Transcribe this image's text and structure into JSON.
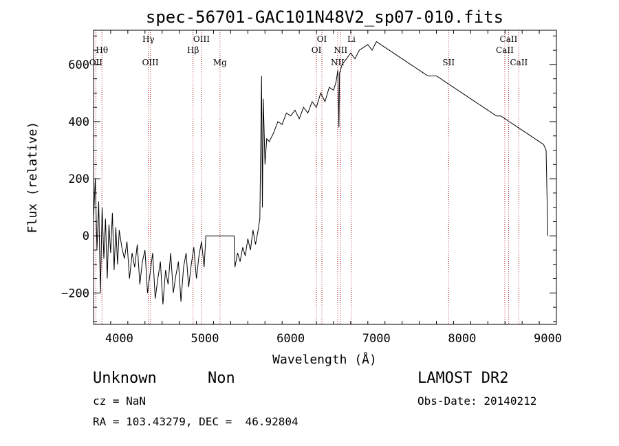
{
  "chart_data": {
    "type": "line",
    "title": "spec-56701-GAC101N48V2_sp07-010.fits",
    "xlabel": "Wavelength (Å)",
    "ylabel": "Flux (relative)",
    "xlim": [
      3700,
      9100
    ],
    "ylim": [
      -310,
      720
    ],
    "x_ticks": [
      4000,
      5000,
      6000,
      7000,
      8000,
      9000
    ],
    "y_ticks": [
      -200,
      0,
      200,
      400,
      600
    ],
    "grid": false,
    "line_color": "#000000",
    "marker_color": "#b22222",
    "series": [
      {
        "x": [
          3700,
          3720,
          3740,
          3760,
          3780,
          3800,
          3820,
          3840,
          3860,
          3880,
          3900,
          3920,
          3940,
          3960,
          3980,
          4000,
          4030,
          4060,
          4090,
          4120,
          4150,
          4180,
          4210,
          4240,
          4270,
          4300,
          4330,
          4360,
          4390,
          4420,
          4450,
          4480,
          4510,
          4540,
          4570,
          4600,
          4630,
          4660,
          4690,
          4720,
          4750,
          4780,
          4810,
          4840,
          4870,
          4900,
          4930,
          4960,
          4990,
          5010,
          5340,
          5350,
          5380,
          5410,
          5440,
          5470,
          5500,
          5530,
          5560,
          5590,
          5620,
          5640,
          5650,
          5660,
          5670,
          5680,
          5700,
          5720,
          5750,
          5800,
          5850,
          5900,
          5950,
          6000,
          6050,
          6100,
          6150,
          6200,
          6250,
          6300,
          6350,
          6400,
          6450,
          6500,
          6530,
          6550,
          6563,
          6570,
          6600,
          6650,
          6700,
          6750,
          6800,
          6850,
          6900,
          6950,
          7000,
          7050,
          7100,
          7150,
          7200,
          7250,
          7300,
          7350,
          7400,
          7450,
          7500,
          7550,
          7600,
          7650,
          7700,
          7750,
          7800,
          7850,
          7900,
          7950,
          8000,
          8050,
          8100,
          8150,
          8200,
          8250,
          8300,
          8350,
          8400,
          8450,
          8500,
          8550,
          8600,
          8650,
          8700,
          8750,
          8800,
          8850,
          8900,
          8950,
          8980,
          9000
        ],
        "y": [
          60,
          200,
          -50,
          120,
          -200,
          100,
          -80,
          60,
          -150,
          40,
          -60,
          80,
          -120,
          30,
          -100,
          20,
          -40,
          -80,
          -20,
          -150,
          -60,
          -110,
          -30,
          -170,
          -90,
          -50,
          -200,
          -130,
          -60,
          -220,
          -150,
          -90,
          -240,
          -120,
          -170,
          -60,
          -200,
          -140,
          -90,
          -230,
          -110,
          -60,
          -180,
          -100,
          -40,
          -150,
          -70,
          -20,
          -110,
          0,
          0,
          -110,
          -60,
          -90,
          -40,
          -70,
          -10,
          -50,
          20,
          -30,
          20,
          60,
          300,
          560,
          100,
          480,
          250,
          340,
          330,
          360,
          400,
          390,
          430,
          420,
          440,
          410,
          450,
          430,
          470,
          450,
          500,
          470,
          520,
          510,
          540,
          580,
          380,
          570,
          600,
          620,
          640,
          620,
          650,
          660,
          670,
          650,
          680,
          670,
          660,
          650,
          640,
          630,
          620,
          610,
          600,
          590,
          580,
          570,
          560,
          560,
          560,
          550,
          540,
          530,
          520,
          510,
          500,
          490,
          480,
          470,
          460,
          450,
          440,
          430,
          420,
          420,
          410,
          400,
          390,
          380,
          370,
          360,
          350,
          340,
          330,
          320,
          300,
          0
        ]
      }
    ],
    "markers": [
      {
        "name": "OII",
        "wl": 3727,
        "row": 3
      },
      {
        "name": "Hθ",
        "wl": 3798,
        "row": 2
      },
      {
        "name": "Hγ",
        "wl": 4340,
        "row": 1
      },
      {
        "name": "OIII",
        "wl": 4363,
        "row": 3
      },
      {
        "name": "Hβ",
        "wl": 4861,
        "row": 2
      },
      {
        "name": "OIII",
        "wl": 4959,
        "row": 1
      },
      {
        "name": "Mg",
        "wl": 5175,
        "row": 3
      },
      {
        "name": "OI",
        "wl": 6300,
        "row": 2
      },
      {
        "name": "OI",
        "wl": 6364,
        "row": 1
      },
      {
        "name": "NII",
        "wl": 6548,
        "row": 3
      },
      {
        "name": "NII",
        "wl": 6583,
        "row": 2
      },
      {
        "name": "Li",
        "wl": 6708,
        "row": 1
      },
      {
        "name": "SII",
        "wl": 7842,
        "row": 3
      },
      {
        "name": "CaII",
        "wl": 8498,
        "row": 2
      },
      {
        "name": "CaII",
        "wl": 8542,
        "row": 1
      },
      {
        "name": "CaII",
        "wl": 8662,
        "row": 3
      }
    ]
  },
  "info": {
    "class": "Unknown",
    "subclass": "Non",
    "survey": "LAMOST DR2",
    "cz": "cz = NaN",
    "obs_date": "Obs-Date: 20140212",
    "coords": "RA = 103.43279, DEC =  46.92804"
  }
}
